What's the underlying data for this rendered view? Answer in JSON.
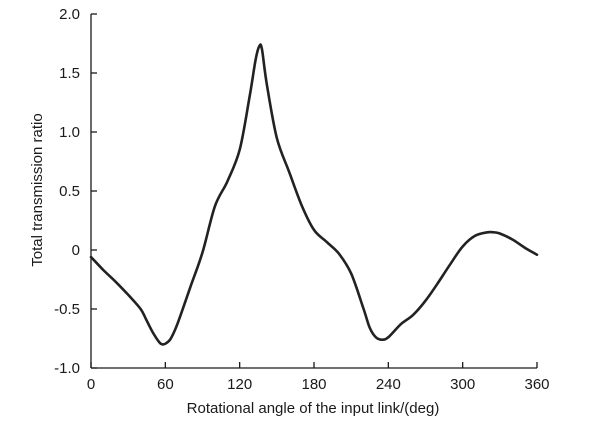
{
  "chart_data": {
    "type": "line",
    "title": "",
    "xlabel": "Rotational angle of the input link/(deg)",
    "ylabel": "Total transmission ratio",
    "xlim": [
      0,
      360
    ],
    "ylim": [
      -1.0,
      2.0
    ],
    "xticks": [
      0,
      60,
      120,
      180,
      240,
      300,
      360
    ],
    "xtick_labels": [
      "0",
      "60",
      "120",
      "180",
      "240",
      "300",
      "360"
    ],
    "yticks": [
      -1.0,
      -0.5,
      0,
      0.5,
      1.0,
      1.5,
      2.0
    ],
    "ytick_labels": [
      "-1.0",
      "-0.5",
      "0",
      "0.5",
      "1.0",
      "1.5",
      "2.0"
    ],
    "grid": false,
    "legend": "none",
    "line_color": "#222222",
    "series": [
      {
        "x": [
          0,
          10,
          20,
          30,
          40,
          45,
          50,
          55,
          58,
          62,
          65,
          70,
          80,
          90,
          100,
          110,
          120,
          128,
          133,
          136,
          138,
          142,
          150,
          160,
          170,
          180,
          190,
          200,
          210,
          220,
          225,
          230,
          235,
          240,
          250,
          260,
          270,
          280,
          290,
          300,
          310,
          320,
          325,
          330,
          340,
          350,
          360
        ],
        "y": [
          -0.06,
          -0.17,
          -0.27,
          -0.38,
          -0.5,
          -0.6,
          -0.7,
          -0.78,
          -0.8,
          -0.78,
          -0.74,
          -0.62,
          -0.32,
          -0.02,
          0.37,
          0.58,
          0.85,
          1.3,
          1.62,
          1.73,
          1.7,
          1.4,
          0.95,
          0.66,
          0.38,
          0.17,
          0.07,
          -0.03,
          -0.2,
          -0.5,
          -0.66,
          -0.74,
          -0.76,
          -0.74,
          -0.63,
          -0.55,
          -0.43,
          -0.28,
          -0.12,
          0.03,
          0.12,
          0.15,
          0.15,
          0.14,
          0.09,
          0.02,
          -0.04
        ]
      }
    ]
  }
}
